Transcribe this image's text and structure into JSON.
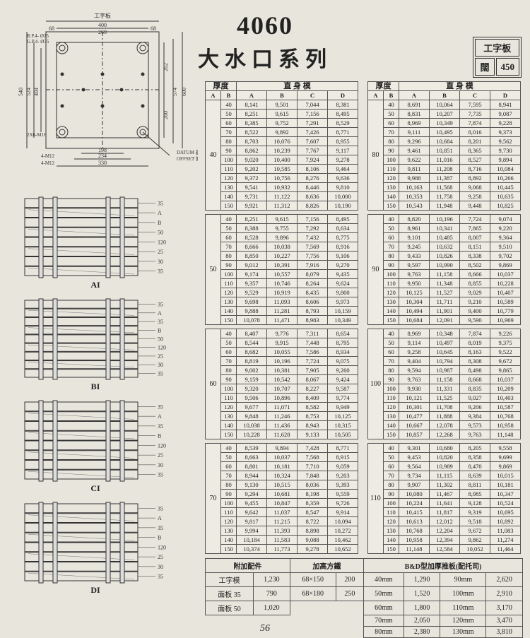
{
  "header": {
    "model": "4060",
    "series": "大水口系列",
    "corner_label1": "工字板",
    "corner_label2": "闊",
    "corner_value": "450"
  },
  "top_drawing": {
    "label_top": "工字板",
    "w_total": "400",
    "w_inner": "260",
    "w_edge1": "68",
    "w_edge2": "68",
    "h_outer": "540",
    "h_mid": "524",
    "h_in": "404",
    "h_r1": "262",
    "h_r2": "260",
    "h_r3": "574",
    "h_r4": "600",
    "b_198": "198",
    "b_234": "234",
    "b_330": "330",
    "note_rp": "R.P.4- Ø25",
    "note_gp": "G.P.4- Ø35",
    "note_2x6": "2X6-M16",
    "note_4m12a": "4-M12",
    "note_4m12b": "4-M12",
    "note_datum": "DATUM 基準",
    "note_offset": "OFFSET 偏孔"
  },
  "side_drawings": [
    {
      "label": "AI",
      "tags": [
        "35",
        "A",
        "B",
        "50",
        "120",
        "25",
        "30",
        "35"
      ]
    },
    {
      "label": "BI",
      "tags": [
        "35",
        "A",
        "35",
        "B",
        "50",
        "120",
        "25",
        "30",
        "35"
      ]
    },
    {
      "label": "CI",
      "tags": [
        "35",
        "A",
        "35",
        "B",
        "120",
        "25",
        "30",
        "35"
      ]
    },
    {
      "label": "DI",
      "tags": [
        "35",
        "A",
        "35",
        "B",
        "120",
        "25",
        "30",
        "35"
      ]
    }
  ],
  "data_cols": {
    "thick": "厚度",
    "mold": "直 身 模",
    "A": "A",
    "B": "B",
    "C": "C",
    "D": "D"
  },
  "blocks_left": [
    {
      "a": "40",
      "rows": [
        [
          "40",
          "8,141",
          "9,501",
          "7,044",
          "8,381"
        ],
        [
          "50",
          "8,251",
          "9,615",
          "7,156",
          "8,495"
        ],
        [
          "60",
          "8,385",
          "9,752",
          "7,291",
          "8,529"
        ],
        [
          "70",
          "8,522",
          "9,892",
          "7,426",
          "8,771"
        ],
        [
          "80",
          "8,703",
          "10,076",
          "7,607",
          "8,955"
        ],
        [
          "90",
          "8,862",
          "10,239",
          "7,767",
          "9,117"
        ],
        [
          "100",
          "9,020",
          "10,400",
          "7,924",
          "9,278"
        ],
        [
          "110",
          "9,202",
          "10,585",
          "8,106",
          "9,464"
        ],
        [
          "120",
          "9,372",
          "10,756",
          "8,276",
          "9,636"
        ],
        [
          "130",
          "9,541",
          "10,932",
          "8,446",
          "9,810"
        ],
        [
          "140",
          "9,731",
          "11,122",
          "8,636",
          "10,000"
        ],
        [
          "150",
          "9,921",
          "11,312",
          "8,826",
          "10,190"
        ]
      ]
    },
    {
      "a": "50",
      "rows": [
        [
          "40",
          "8,251",
          "9,615",
          "7,156",
          "8,495"
        ],
        [
          "50",
          "8,388",
          "9,755",
          "7,292",
          "8,634"
        ],
        [
          "60",
          "8,528",
          "9,896",
          "7,432",
          "8,775"
        ],
        [
          "70",
          "8,666",
          "10,038",
          "7,569",
          "8,916"
        ],
        [
          "80",
          "8,850",
          "10,227",
          "7,756",
          "9,106"
        ],
        [
          "90",
          "9,012",
          "10,391",
          "7,916",
          "9,270"
        ],
        [
          "100",
          "9,174",
          "10,557",
          "8,079",
          "9,435"
        ],
        [
          "110",
          "9,357",
          "10,746",
          "8,264",
          "9,624"
        ],
        [
          "120",
          "9,529",
          "10,919",
          "8,435",
          "9,800"
        ],
        [
          "130",
          "9,698",
          "11,093",
          "8,606",
          "9,973"
        ],
        [
          "140",
          "9,888",
          "11,281",
          "8,793",
          "10,159"
        ],
        [
          "150",
          "10,078",
          "11,471",
          "8,983",
          "10,349"
        ]
      ]
    },
    {
      "a": "60",
      "rows": [
        [
          "40",
          "8,407",
          "9,776",
          "7,311",
          "8,654"
        ],
        [
          "50",
          "8,544",
          "9,915",
          "7,448",
          "8,795"
        ],
        [
          "60",
          "8,682",
          "10,055",
          "7,586",
          "8,934"
        ],
        [
          "70",
          "8,819",
          "10,196",
          "7,724",
          "9,075"
        ],
        [
          "80",
          "9,002",
          "10,381",
          "7,905",
          "9,260"
        ],
        [
          "90",
          "9,159",
          "10,542",
          "8,067",
          "9,424"
        ],
        [
          "100",
          "9,320",
          "10,707",
          "8,227",
          "9,587"
        ],
        [
          "110",
          "9,506",
          "10,896",
          "8,409",
          "9,774"
        ],
        [
          "120",
          "9,677",
          "11,071",
          "8,582",
          "9,949"
        ],
        [
          "130",
          "9,848",
          "11,246",
          "8,753",
          "10,125"
        ],
        [
          "140",
          "10,038",
          "11,436",
          "8,943",
          "10,315"
        ],
        [
          "150",
          "10,228",
          "11,628",
          "9,133",
          "10,505"
        ]
      ]
    },
    {
      "a": "70",
      "rows": [
        [
          "40",
          "8,539",
          "9,894",
          "7,428",
          "8,771"
        ],
        [
          "50",
          "8,663",
          "10,037",
          "7,568",
          "8,915"
        ],
        [
          "60",
          "8,801",
          "10,181",
          "7,710",
          "9,059"
        ],
        [
          "70",
          "8,944",
          "10,324",
          "7,848",
          "9,203"
        ],
        [
          "80",
          "9,130",
          "10,515",
          "8,036",
          "9,393"
        ],
        [
          "90",
          "9,294",
          "10,681",
          "8,198",
          "9,559"
        ],
        [
          "100",
          "9,455",
          "10,847",
          "8,359",
          "9,726"
        ],
        [
          "110",
          "9,642",
          "11,037",
          "8,547",
          "9,914"
        ],
        [
          "120",
          "9,817",
          "11,215",
          "8,722",
          "10,094"
        ],
        [
          "130",
          "9,994",
          "11,393",
          "8,898",
          "10,272"
        ],
        [
          "140",
          "10,184",
          "11,583",
          "9,088",
          "10,462"
        ],
        [
          "150",
          "10,374",
          "11,773",
          "9,278",
          "10,652"
        ]
      ]
    }
  ],
  "blocks_right": [
    {
      "a": "80",
      "rows": [
        [
          "40",
          "8,691",
          "10,064",
          "7,595",
          "8,941"
        ],
        [
          "50",
          "8,831",
          "10,207",
          "7,735",
          "9,087"
        ],
        [
          "60",
          "8,969",
          "10,349",
          "7,874",
          "9,228"
        ],
        [
          "70",
          "9,111",
          "10,495",
          "8,016",
          "9,373"
        ],
        [
          "80",
          "9,296",
          "10,684",
          "8,201",
          "9,562"
        ],
        [
          "90",
          "9,461",
          "10,851",
          "8,365",
          "9,730"
        ],
        [
          "100",
          "9,622",
          "11,016",
          "8,527",
          "9,894"
        ],
        [
          "110",
          "9,811",
          "11,208",
          "8,716",
          "10,084"
        ],
        [
          "120",
          "9,988",
          "11,387",
          "8,892",
          "10,266"
        ],
        [
          "130",
          "10,163",
          "11,568",
          "9,068",
          "10,445"
        ],
        [
          "140",
          "10,353",
          "11,758",
          "9,258",
          "10,635"
        ],
        [
          "150",
          "10,543",
          "11,948",
          "9,448",
          "10,825"
        ]
      ]
    },
    {
      "a": "90",
      "rows": [
        [
          "40",
          "8,820",
          "10,196",
          "7,724",
          "9,074"
        ],
        [
          "50",
          "8,961",
          "10,341",
          "7,865",
          "9,220"
        ],
        [
          "60",
          "9,101",
          "10,485",
          "8,007",
          "9,364"
        ],
        [
          "70",
          "9,245",
          "10,632",
          "8,151",
          "9,510"
        ],
        [
          "80",
          "9,433",
          "10,826",
          "8,338",
          "9,702"
        ],
        [
          "90",
          "9,597",
          "10,990",
          "8,502",
          "9,869"
        ],
        [
          "100",
          "9,763",
          "11,158",
          "8,666",
          "10,037"
        ],
        [
          "110",
          "9,950",
          "11,348",
          "8,855",
          "10,228"
        ],
        [
          "120",
          "10,125",
          "11,527",
          "9,029",
          "10,407"
        ],
        [
          "130",
          "10,304",
          "11,711",
          "9,210",
          "10,589"
        ],
        [
          "140",
          "10,494",
          "11,901",
          "9,400",
          "10,779"
        ],
        [
          "150",
          "10,684",
          "12,091",
          "9,590",
          "10,969"
        ]
      ]
    },
    {
      "a": "100",
      "rows": [
        [
          "40",
          "8,969",
          "10,348",
          "7,874",
          "9,226"
        ],
        [
          "50",
          "9,114",
          "10,497",
          "8,019",
          "9,375"
        ],
        [
          "60",
          "9,258",
          "10,645",
          "8,163",
          "9,522"
        ],
        [
          "70",
          "9,404",
          "10,794",
          "8,308",
          "9,672"
        ],
        [
          "80",
          "9,594",
          "10,987",
          "8,498",
          "9,865"
        ],
        [
          "90",
          "9,763",
          "11,158",
          "8,668",
          "10,037"
        ],
        [
          "100",
          "9,930",
          "11,331",
          "8,835",
          "10,209"
        ],
        [
          "110",
          "10,121",
          "11,525",
          "9,027",
          "10,403"
        ],
        [
          "120",
          "10,301",
          "11,708",
          "9,206",
          "10,587"
        ],
        [
          "130",
          "10,477",
          "11,888",
          "9,384",
          "10,768"
        ],
        [
          "140",
          "10,667",
          "12,078",
          "9,573",
          "10,958"
        ],
        [
          "150",
          "10,857",
          "12,268",
          "9,763",
          "11,148"
        ]
      ]
    },
    {
      "a": "110",
      "rows": [
        [
          "40",
          "9,301",
          "10,680",
          "8,205",
          "9,558"
        ],
        [
          "50",
          "9,453",
          "10,820",
          "8,358",
          "9,699"
        ],
        [
          "60",
          "9,564",
          "10,989",
          "8,470",
          "9,869"
        ],
        [
          "70",
          "9,734",
          "11,115",
          "8,639",
          "10,015"
        ],
        [
          "80",
          "9,907",
          "11,302",
          "8,811",
          "10,181"
        ],
        [
          "90",
          "10,080",
          "11,467",
          "8,985",
          "10,347"
        ],
        [
          "100",
          "10,224",
          "11,641",
          "9,128",
          "10,524"
        ],
        [
          "110",
          "10,415",
          "11,817",
          "9,319",
          "10,695"
        ],
        [
          "120",
          "10,613",
          "12,012",
          "9,518",
          "10,892"
        ],
        [
          "130",
          "10,768",
          "12,204",
          "9,672",
          "11,083"
        ],
        [
          "140",
          "10,958",
          "12,394",
          "9,862",
          "11,274"
        ],
        [
          "150",
          "11,148",
          "12,584",
          "10,052",
          "11,464"
        ]
      ]
    }
  ],
  "bottom": {
    "h1": "附加配件",
    "h2": "加高方鐵",
    "h3": "B&D型加厚推板(配托司)",
    "rows1": [
      [
        "工字模",
        "1,230"
      ],
      [
        "面板 35",
        "790"
      ],
      [
        "面板 50",
        "1,020"
      ]
    ],
    "rows2": [
      [
        "68×150",
        "200"
      ],
      [
        "68×180",
        "250"
      ]
    ],
    "rows3": [
      [
        "40mm",
        "1,290",
        "90mm",
        "2,620"
      ],
      [
        "50mm",
        "1,520",
        "100mm",
        "2,910"
      ],
      [
        "60mm",
        "1,800",
        "110mm",
        "3,170"
      ],
      [
        "70mm",
        "2,050",
        "120mm",
        "3,470"
      ],
      [
        "80mm",
        "2,380",
        "130mm",
        "3,810"
      ]
    ]
  },
  "pagenum": "56"
}
